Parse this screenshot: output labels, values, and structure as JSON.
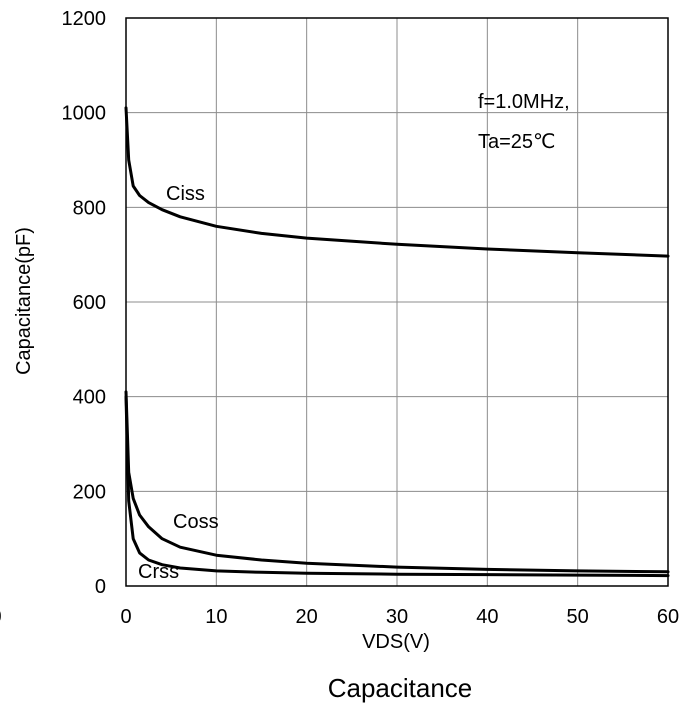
{
  "chart_data": {
    "type": "line",
    "title": "",
    "caption": "Capacitance",
    "xlabel": "VDS(V)",
    "ylabel": "Capacitance(pF)",
    "xlim": [
      0,
      60
    ],
    "ylim": [
      0,
      1200
    ],
    "grid": true,
    "legend": "none",
    "x_ticks": [
      "0",
      "10",
      "20",
      "30",
      "40",
      "50",
      "60"
    ],
    "extra_x_tick": "0",
    "y_ticks": [
      "0",
      "200",
      "400",
      "600",
      "800",
      "1000",
      "1200"
    ],
    "line_color": "#000000",
    "annotation": [
      "f=1.0MHz,",
      "Ta=25℃"
    ],
    "series": [
      {
        "name": "Ciss",
        "x": [
          0,
          0.3,
          0.8,
          1.5,
          2.5,
          4,
          6,
          10,
          15,
          20,
          30,
          40,
          50,
          60
        ],
        "values": [
          1010,
          900,
          845,
          825,
          810,
          795,
          780,
          760,
          745,
          735,
          722,
          712,
          704,
          697
        ]
      },
      {
        "name": "Coss",
        "x": [
          0,
          0.3,
          0.8,
          1.5,
          2.5,
          4,
          6,
          10,
          15,
          20,
          30,
          40,
          50,
          60
        ],
        "values": [
          410,
          240,
          185,
          150,
          125,
          100,
          82,
          65,
          55,
          48,
          40,
          35,
          32,
          30
        ]
      },
      {
        "name": "Crss",
        "x": [
          0,
          0.3,
          0.8,
          1.5,
          2.5,
          4,
          6,
          10,
          15,
          20,
          30,
          40,
          50,
          60
        ],
        "values": [
          400,
          180,
          100,
          70,
          55,
          45,
          38,
          32,
          29,
          27,
          25,
          24,
          23,
          22
        ]
      }
    ]
  }
}
